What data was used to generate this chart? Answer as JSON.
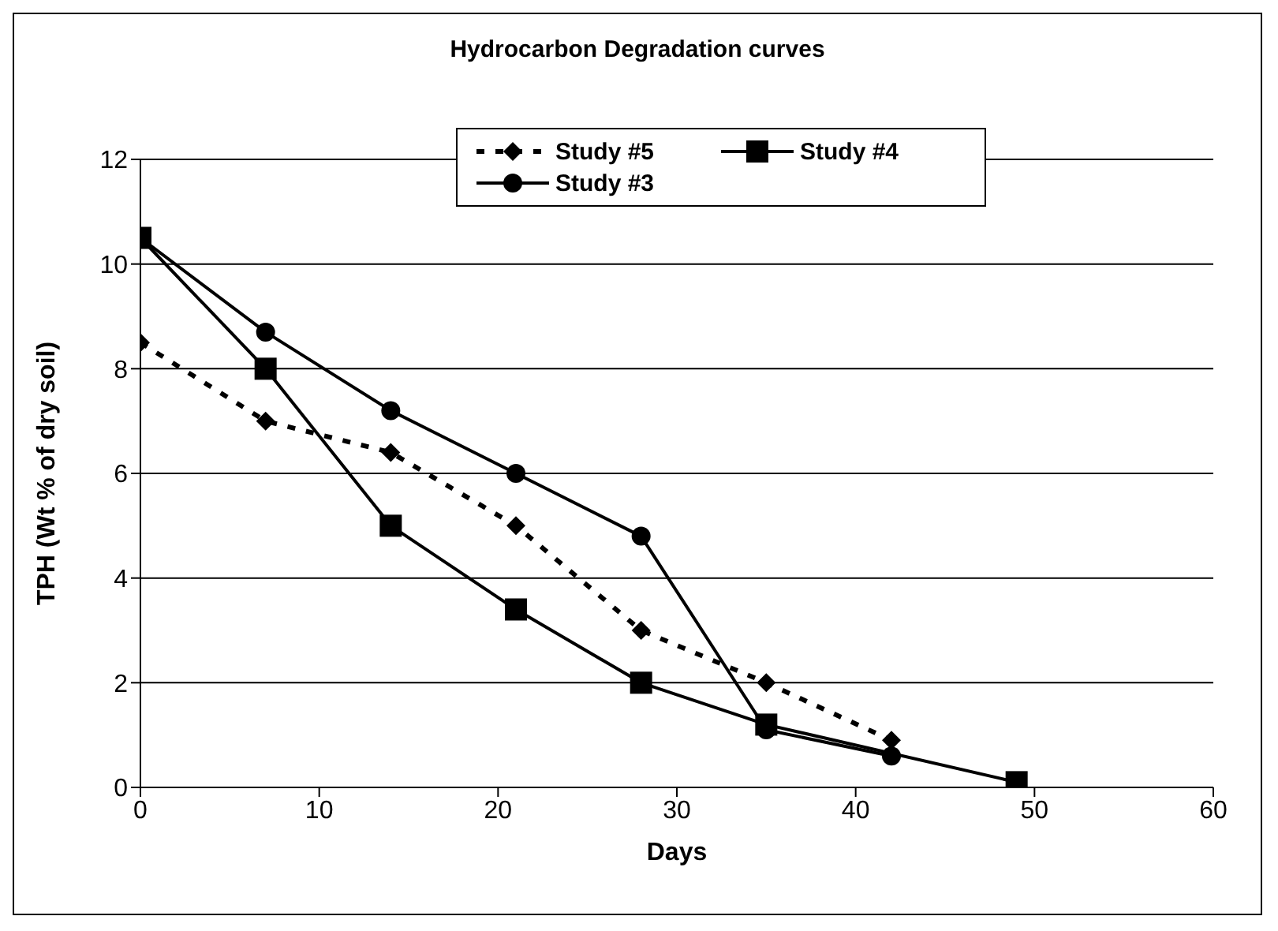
{
  "chart_data": {
    "type": "line",
    "title": "Hydrocarbon Degradation curves",
    "xlabel": "Days",
    "ylabel": "TPH (Wt % of dry soil)",
    "xlim": [
      0,
      60
    ],
    "xticks": [
      0,
      10,
      20,
      30,
      40,
      50,
      60
    ],
    "ylim": [
      0,
      12
    ],
    "yticks": [
      0,
      2,
      4,
      6,
      8,
      10,
      12
    ],
    "grid": "y",
    "legend": "top",
    "series": [
      {
        "name": "Study #5",
        "color": "#000000",
        "marker": "diamond",
        "line_style": "dashed",
        "x": [
          0,
          7,
          14,
          21,
          28,
          35,
          42
        ],
        "values": [
          8.5,
          7.0,
          6.4,
          5.0,
          3.0,
          2.0,
          0.9
        ]
      },
      {
        "name": "Study #4",
        "color": "#000000",
        "marker": "square",
        "line_style": "solid",
        "x": [
          0,
          7,
          14,
          21,
          28,
          35,
          49
        ],
        "values": [
          10.5,
          8.0,
          5.0,
          3.4,
          2.0,
          1.2,
          0.1
        ]
      },
      {
        "name": "Study #3",
        "color": "#000000",
        "marker": "circle",
        "line_style": "solid",
        "x": [
          0,
          7,
          14,
          21,
          28,
          35,
          42
        ],
        "values": [
          10.5,
          8.7,
          7.2,
          6.0,
          4.8,
          1.1,
          0.6
        ]
      }
    ]
  }
}
